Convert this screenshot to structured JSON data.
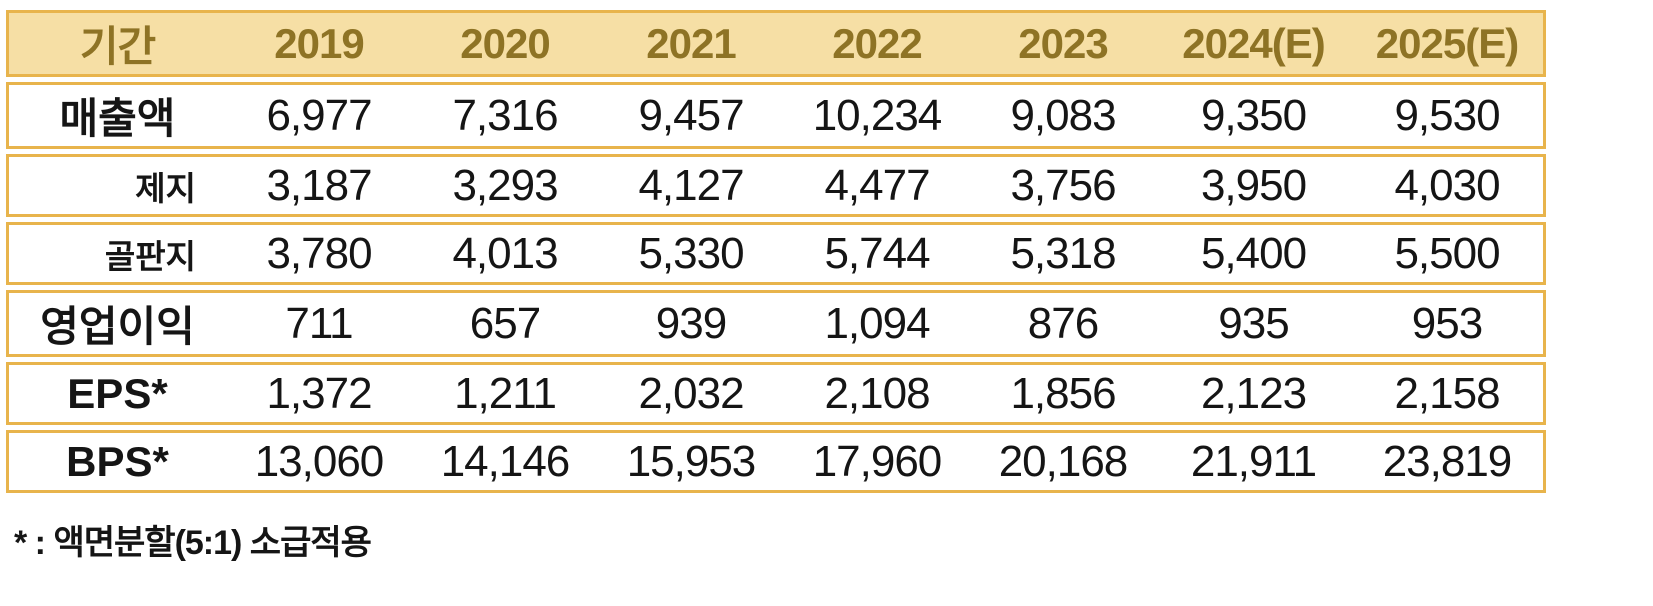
{
  "table": {
    "columns": [
      "기간",
      "2019",
      "2020",
      "2021",
      "2022",
      "2023",
      "2024(E)",
      "2025(E)"
    ],
    "rows": [
      {
        "label": "매출액",
        "indent": false,
        "values": [
          "6,977",
          "7,316",
          "9,457",
          "10,234",
          "9,083",
          "9,350",
          "9,530"
        ]
      },
      {
        "label": "제지",
        "indent": true,
        "values": [
          "3,187",
          "3,293",
          "4,127",
          "4,477",
          "3,756",
          "3,950",
          "4,030"
        ]
      },
      {
        "label": "골판지",
        "indent": true,
        "values": [
          "3,780",
          "4,013",
          "5,330",
          "5,744",
          "5,318",
          "5,400",
          "5,500"
        ]
      },
      {
        "label": "영업이익",
        "indent": false,
        "values": [
          "711",
          "657",
          "939",
          "1,094",
          "876",
          "935",
          "953"
        ]
      },
      {
        "label": "EPS*",
        "indent": false,
        "values": [
          "1,372",
          "1,211",
          "2,032",
          "2,108",
          "1,856",
          "2,123",
          "2,158"
        ]
      },
      {
        "label": "BPS*",
        "indent": false,
        "values": [
          "13,060",
          "14,146",
          "15,953",
          "17,960",
          "20,168",
          "21,911",
          "23,819"
        ]
      }
    ]
  },
  "footnote": "* : 액면분할(5:1) 소급적용",
  "chart_data": {
    "type": "table",
    "title": "",
    "categories": [
      "2019",
      "2020",
      "2021",
      "2022",
      "2023",
      "2024(E)",
      "2025(E)"
    ],
    "series": [
      {
        "name": "매출액",
        "values": [
          6977,
          7316,
          9457,
          10234,
          9083,
          9350,
          9530
        ]
      },
      {
        "name": "제지",
        "values": [
          3187,
          3293,
          4127,
          4477,
          3756,
          3950,
          4030
        ]
      },
      {
        "name": "골판지",
        "values": [
          3780,
          4013,
          5330,
          5744,
          5318,
          5400,
          5500
        ]
      },
      {
        "name": "영업이익",
        "values": [
          711,
          657,
          939,
          1094,
          876,
          935,
          953
        ]
      },
      {
        "name": "EPS*",
        "values": [
          1372,
          1211,
          2032,
          2108,
          1856,
          2123,
          2158
        ]
      },
      {
        "name": "BPS*",
        "values": [
          13060,
          14146,
          15953,
          17960,
          20168,
          21911,
          23819
        ]
      }
    ]
  },
  "colors": {
    "gold": "#E8B44C",
    "header_bg": "#F6DFA5",
    "header_text": "#8E7325",
    "text": "#151515"
  }
}
